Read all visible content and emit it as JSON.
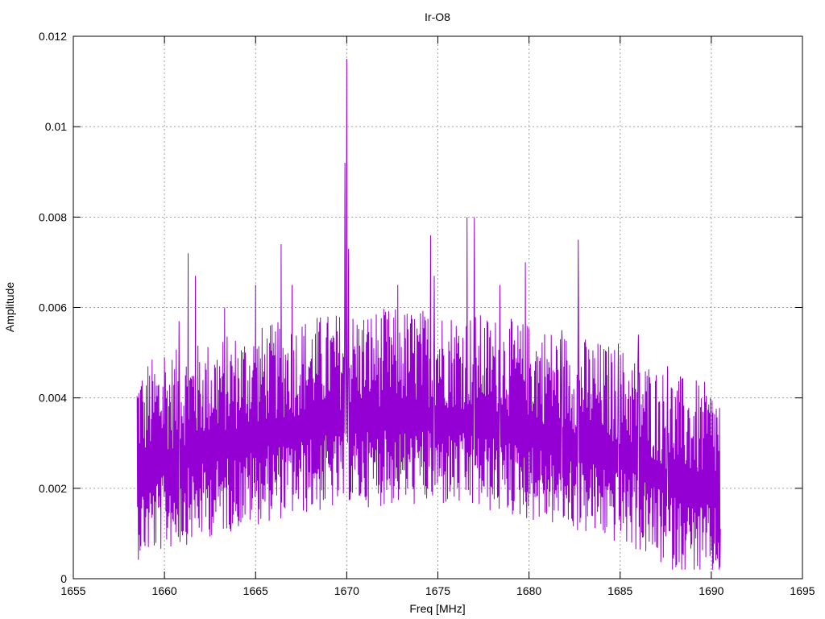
{
  "chart_data": {
    "type": "line",
    "title": "Ir-O8",
    "xlabel": "Freq [MHz]",
    "ylabel": "Amplitude",
    "xlim": [
      1655,
      1695
    ],
    "ylim": [
      0,
      0.012
    ],
    "x_ticks": [
      1655,
      1660,
      1665,
      1670,
      1675,
      1680,
      1685,
      1690,
      1695
    ],
    "x_tick_labels": [
      "1655",
      "1660",
      "1665",
      "1670",
      "1675",
      "1680",
      "1685",
      "1690",
      "1695"
    ],
    "y_ticks": [
      0,
      0.002,
      0.004,
      0.006,
      0.008,
      0.01,
      0.012
    ],
    "y_tick_labels": [
      "0",
      "0.002",
      "0.004",
      "0.006",
      "0.008",
      "0.01",
      "0.012"
    ],
    "grid": true,
    "legend": "none",
    "series": [
      {
        "color": "#9400d3",
        "x_range": [
          1658.5,
          1690.5
        ],
        "peaks": [
          {
            "x": 1658.9,
            "y": 0.0039
          },
          {
            "x": 1660.0,
            "y": 0.0049
          },
          {
            "x": 1660.8,
            "y": 0.0057
          },
          {
            "x": 1661.3,
            "y": 0.0072
          },
          {
            "x": 1661.7,
            "y": 0.0067
          },
          {
            "x": 1663.3,
            "y": 0.006
          },
          {
            "x": 1665.0,
            "y": 0.0065
          },
          {
            "x": 1666.4,
            "y": 0.0074
          },
          {
            "x": 1667.0,
            "y": 0.0065
          },
          {
            "x": 1669.9,
            "y": 0.0092
          },
          {
            "x": 1670.0,
            "y": 0.0115
          },
          {
            "x": 1670.1,
            "y": 0.0073
          },
          {
            "x": 1672.8,
            "y": 0.0065
          },
          {
            "x": 1674.6,
            "y": 0.0076
          },
          {
            "x": 1674.8,
            "y": 0.0067
          },
          {
            "x": 1676.6,
            "y": 0.008
          },
          {
            "x": 1677.0,
            "y": 0.008
          },
          {
            "x": 1678.4,
            "y": 0.0065
          },
          {
            "x": 1679.8,
            "y": 0.007
          },
          {
            "x": 1681.8,
            "y": 0.0055
          },
          {
            "x": 1682.7,
            "y": 0.0075
          },
          {
            "x": 1684.9,
            "y": 0.0052
          },
          {
            "x": 1686.0,
            "y": 0.0054
          },
          {
            "x": 1687.6,
            "y": 0.0047
          },
          {
            "x": 1690.5,
            "y": 0.0011
          }
        ]
      }
    ]
  }
}
